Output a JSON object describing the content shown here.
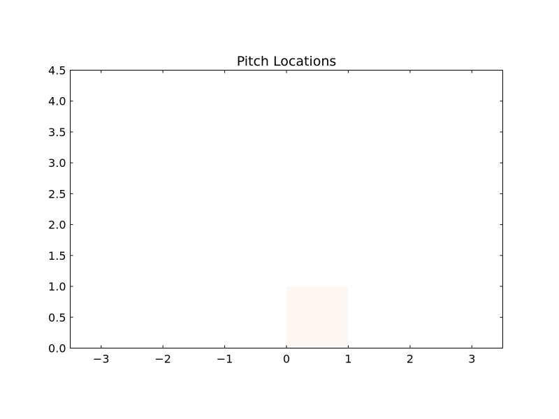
{
  "chart_data": {
    "type": "heatmap",
    "title": "Pitch Locations",
    "xlabel": "",
    "ylabel": "",
    "xlim": [
      -3.5,
      3.5
    ],
    "ylim": [
      0.0,
      4.5
    ],
    "x_ticks": [
      "−3",
      "−2",
      "−1",
      "0",
      "1",
      "2",
      "3"
    ],
    "x_tick_values": [
      -3,
      -2,
      -1,
      0,
      1,
      2,
      3
    ],
    "y_ticks": [
      "0.0",
      "0.5",
      "1.0",
      "1.5",
      "2.0",
      "2.5",
      "3.0",
      "3.5",
      "4.0",
      "4.5"
    ],
    "y_tick_values": [
      0.0,
      0.5,
      1.0,
      1.5,
      2.0,
      2.5,
      3.0,
      3.5,
      4.0,
      4.5
    ],
    "grid": false,
    "legend": "none",
    "cells": [
      {
        "x0": 0,
        "x1": 1,
        "y0": 0,
        "y1": 1,
        "color": "#fdf7f4"
      }
    ],
    "colors": {
      "axes": "#000000",
      "background": "#ffffff"
    }
  }
}
